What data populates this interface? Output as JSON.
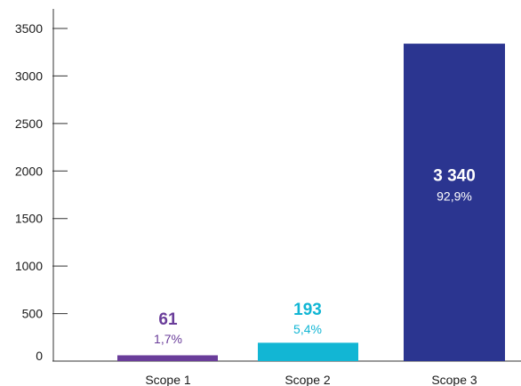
{
  "chart_data": {
    "type": "bar",
    "categories": [
      "Scope 1",
      "Scope 2",
      "Scope 3"
    ],
    "values": [
      61,
      193,
      3340
    ],
    "value_labels": [
      "61",
      "193",
      "3 340"
    ],
    "percent_labels": [
      "1,7%",
      "5,4%",
      "92,9%"
    ],
    "colors": [
      "#6a3d9a",
      "#12b6d4",
      "#2b3590"
    ],
    "title": "",
    "xlabel": "",
    "ylabel": "",
    "ylim": [
      0,
      3500
    ],
    "yticks": [
      0,
      500,
      1000,
      1500,
      2000,
      2500,
      3000,
      3500
    ],
    "grid": false,
    "legend": "none"
  }
}
